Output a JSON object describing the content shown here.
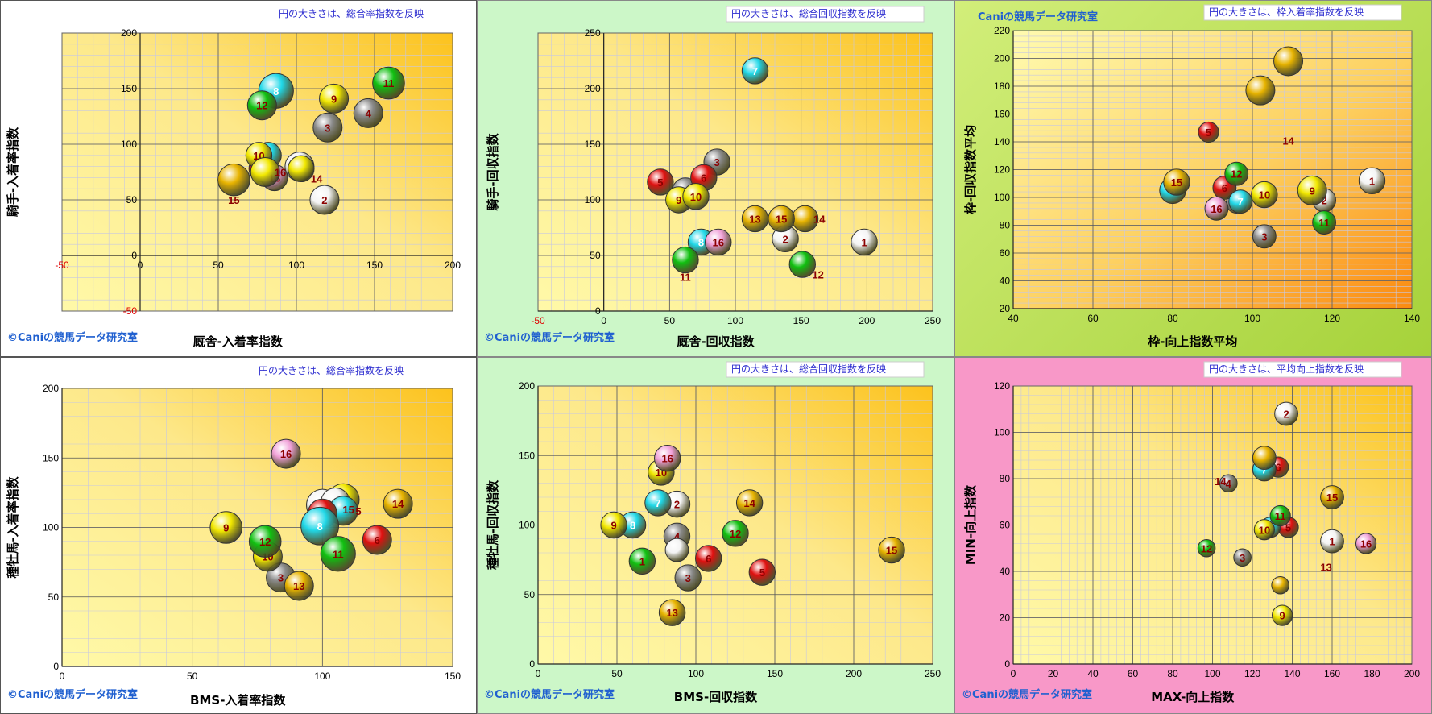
{
  "copyright": "©Caniの競馬データ研究室",
  "colors": {
    "yellow": "#f2e800",
    "gold": "#e8b400",
    "white": "#f4f4f4",
    "gray": "#8a8a8a",
    "red": "#e01010",
    "cyan": "#20d8e8",
    "green": "#10c010",
    "pink": "#f0a0d8",
    "label_dark": "#8b0000",
    "note_blue": "#3030d0",
    "brand_blue": "#2060d0"
  },
  "chart_data": [
    {
      "type": "scatter",
      "note": "円の大きさは、総合率指数を反映",
      "brand": "",
      "xlabel": "厩舎-入着率指数",
      "ylabel": "騎手-入着率指数",
      "xlim": [
        -50,
        200
      ],
      "ylim": [
        -50,
        200
      ],
      "xticks": [
        -50,
        0,
        50,
        100,
        150,
        200
      ],
      "yticks": [
        -50,
        0,
        50,
        100,
        150,
        200
      ],
      "points": [
        {
          "label": "1",
          "x": 102,
          "y": 80,
          "r": 1.0,
          "color": "white"
        },
        {
          "label": "2",
          "x": 118,
          "y": 50,
          "r": 1.0,
          "color": "white"
        },
        {
          "label": "3",
          "x": 120,
          "y": 115,
          "r": 1.0,
          "color": "gray"
        },
        {
          "label": "4",
          "x": 146,
          "y": 128,
          "r": 1.0,
          "color": "gray"
        },
        {
          "label": "5",
          "x": 78,
          "y": 78,
          "r": 0.9,
          "color": "red"
        },
        {
          "label": "6",
          "x": 84,
          "y": 72,
          "r": 0.8,
          "color": "cyan"
        },
        {
          "label": "7",
          "x": 82,
          "y": 90,
          "r": 0.9,
          "color": "cyan"
        },
        {
          "label": "8",
          "x": 87,
          "y": 148,
          "r": 1.2,
          "color": "cyan"
        },
        {
          "label": "9",
          "x": 124,
          "y": 141,
          "r": 1.0,
          "color": "yellow"
        },
        {
          "label": "10",
          "x": 76,
          "y": 90,
          "r": 0.9,
          "color": "yellow"
        },
        {
          "label": "11",
          "x": 159,
          "y": 155,
          "r": 1.1,
          "color": "green"
        },
        {
          "label": "12",
          "x": 78,
          "y": 135,
          "r": 1.0,
          "color": "green"
        },
        {
          "label": "13",
          "x": 86,
          "y": 70,
          "r": 0.9,
          "color": "pink"
        },
        {
          "label": "14",
          "x": 103,
          "y": 78,
          "r": 0.9,
          "color": "yellow",
          "offset": "below-right"
        },
        {
          "label": "15",
          "x": 60,
          "y": 68,
          "r": 1.1,
          "color": "gold",
          "offset": "below"
        },
        {
          "label": "16",
          "x": 80,
          "y": 75,
          "r": 1.0,
          "color": "yellow",
          "offset": "right"
        }
      ]
    },
    {
      "type": "scatter",
      "note": "円の大きさは、総合回収指数を反映",
      "brand": "",
      "xlabel": "厩舎-回収指数",
      "ylabel": "騎手-回収指数",
      "xlim": [
        -50,
        250
      ],
      "ylim": [
        0,
        250
      ],
      "xticks": [
        -50,
        0,
        50,
        100,
        150,
        200,
        250
      ],
      "yticks": [
        0,
        50,
        100,
        150,
        200,
        250
      ],
      "points": [
        {
          "label": "1",
          "x": 198,
          "y": 62,
          "r": 0.9,
          "color": "white"
        },
        {
          "label": "2",
          "x": 138,
          "y": 65,
          "r": 0.9,
          "color": "white"
        },
        {
          "label": "3",
          "x": 86,
          "y": 134,
          "r": 0.9,
          "color": "gray"
        },
        {
          "label": "4",
          "x": 62,
          "y": 108,
          "r": 0.9,
          "color": "gray"
        },
        {
          "label": "5",
          "x": 43,
          "y": 116,
          "r": 0.9,
          "color": "red"
        },
        {
          "label": "6",
          "x": 76,
          "y": 120,
          "r": 0.9,
          "color": "red"
        },
        {
          "label": "7",
          "x": 115,
          "y": 216,
          "r": 0.9,
          "color": "cyan"
        },
        {
          "label": "8",
          "x": 74,
          "y": 62,
          "r": 0.9,
          "color": "cyan"
        },
        {
          "label": "9",
          "x": 57,
          "y": 100,
          "r": 0.9,
          "color": "yellow"
        },
        {
          "label": "10",
          "x": 70,
          "y": 103,
          "r": 0.9,
          "color": "yellow"
        },
        {
          "label": "11",
          "x": 62,
          "y": 46,
          "r": 0.9,
          "color": "green",
          "offset": "below"
        },
        {
          "label": "12",
          "x": 151,
          "y": 42,
          "r": 0.9,
          "color": "green",
          "offset": "below-right"
        },
        {
          "label": "13",
          "x": 115,
          "y": 83,
          "r": 0.9,
          "color": "gold"
        },
        {
          "label": "14",
          "x": 153,
          "y": 83,
          "r": 0.9,
          "color": "gold",
          "offset": "right"
        },
        {
          "label": "15",
          "x": 135,
          "y": 83,
          "r": 0.9,
          "color": "gold"
        },
        {
          "label": "16",
          "x": 87,
          "y": 62,
          "r": 0.9,
          "color": "pink"
        }
      ]
    },
    {
      "type": "scatter",
      "note": "円の大きさは、枠入着率指数を反映",
      "brand": "Caniの競馬データ研究室",
      "xlabel": "枠-向上指数平均",
      "ylabel": "枠-回収指数平均",
      "xlim": [
        40,
        140
      ],
      "ylim": [
        20,
        220
      ],
      "xticks": [
        40,
        60,
        80,
        100,
        120,
        140
      ],
      "yticks": [
        20,
        40,
        60,
        80,
        100,
        120,
        140,
        160,
        180,
        200,
        220
      ],
      "points": [
        {
          "label": "1",
          "x": 130,
          "y": 112,
          "r": 0.9,
          "color": "white"
        },
        {
          "label": "2",
          "x": 118,
          "y": 98,
          "r": 0.8,
          "color": "white"
        },
        {
          "label": "3",
          "x": 103,
          "y": 72,
          "r": 0.8,
          "color": "gray"
        },
        {
          "label": "4",
          "x": 96,
          "y": 96,
          "r": 0.7,
          "color": "gray"
        },
        {
          "label": "5",
          "x": 89,
          "y": 147,
          "r": 0.7,
          "color": "red"
        },
        {
          "label": "6",
          "x": 93,
          "y": 107,
          "r": 0.8,
          "color": "red"
        },
        {
          "label": "7",
          "x": 97,
          "y": 97,
          "r": 0.8,
          "color": "cyan"
        },
        {
          "label": "8",
          "x": 80,
          "y": 105,
          "r": 0.9,
          "color": "cyan"
        },
        {
          "label": "9",
          "x": 115,
          "y": 105,
          "r": 1.0,
          "color": "yellow"
        },
        {
          "label": "10",
          "x": 103,
          "y": 102,
          "r": 0.9,
          "color": "yellow"
        },
        {
          "label": "11",
          "x": 118,
          "y": 82,
          "r": 0.8,
          "color": "green"
        },
        {
          "label": "12",
          "x": 96,
          "y": 117,
          "r": 0.8,
          "color": "green"
        },
        {
          "label": "13",
          "x": 102,
          "y": 177,
          "r": 1.0,
          "color": "gold",
          "hidden": true
        },
        {
          "label": "14",
          "x": 109,
          "y": 141,
          "r": 0,
          "color": "gold",
          "textonly": true
        },
        {
          "label": "15",
          "x": 81,
          "y": 111,
          "r": 0.9,
          "color": "gold"
        },
        {
          "label": "16",
          "x": 91,
          "y": 92,
          "r": 0.8,
          "color": "pink"
        },
        {
          "label": "",
          "x": 109,
          "y": 198,
          "r": 1.0,
          "color": "gold"
        }
      ]
    },
    {
      "type": "scatter",
      "note": "円の大きさは、総合率指数を反映",
      "brand": "",
      "xlabel": "BMS-入着率指数",
      "ylabel": "種牡馬-入着率指数",
      "xlim": [
        0,
        150
      ],
      "ylim": [
        0,
        200
      ],
      "xticks": [
        0,
        50,
        100,
        150
      ],
      "yticks": [
        0,
        50,
        100,
        150,
        200
      ],
      "points": [
        {
          "label": "1",
          "x": 108,
          "y": 120,
          "r": 1.1,
          "color": "yellow"
        },
        {
          "label": "2",
          "x": 100,
          "y": 116,
          "r": 1.1,
          "color": "white"
        },
        {
          "label": "3",
          "x": 84,
          "y": 64,
          "r": 1.0,
          "color": "gray"
        },
        {
          "label": "4",
          "x": 105,
          "y": 118,
          "r": 1.0,
          "color": "white"
        },
        {
          "label": "5",
          "x": 108,
          "y": 112,
          "r": 1.0,
          "color": "cyan",
          "offset": "right"
        },
        {
          "label": "6",
          "x": 121,
          "y": 91,
          "r": 1.0,
          "color": "red"
        },
        {
          "label": "7",
          "x": 100,
          "y": 110,
          "r": 1.0,
          "color": "red"
        },
        {
          "label": "8",
          "x": 99,
          "y": 101,
          "r": 1.3,
          "color": "cyan"
        },
        {
          "label": "9",
          "x": 63,
          "y": 100,
          "r": 1.1,
          "color": "yellow"
        },
        {
          "label": "10",
          "x": 79,
          "y": 79,
          "r": 1.0,
          "color": "yellow"
        },
        {
          "label": "11",
          "x": 106,
          "y": 81,
          "r": 1.2,
          "color": "green"
        },
        {
          "label": "12",
          "x": 78,
          "y": 90,
          "r": 1.1,
          "color": "green"
        },
        {
          "label": "13",
          "x": 91,
          "y": 58,
          "r": 1.0,
          "color": "gold"
        },
        {
          "label": "14",
          "x": 129,
          "y": 117,
          "r": 1.0,
          "color": "gold"
        },
        {
          "label": "15",
          "x": 110,
          "y": 113,
          "r": 0,
          "color": "gold",
          "textonly": true
        },
        {
          "label": "16",
          "x": 86,
          "y": 153,
          "r": 1.0,
          "color": "pink"
        }
      ]
    },
    {
      "type": "scatter",
      "note": "円の大きさは、総合回収指数を反映",
      "brand": "",
      "xlabel": "BMS-回収指数",
      "ylabel": "種牡馬-回収指数",
      "xlim": [
        0,
        250
      ],
      "ylim": [
        0,
        200
      ],
      "xticks": [
        0,
        50,
        100,
        150,
        200,
        250
      ],
      "yticks": [
        0,
        50,
        100,
        150,
        200
      ],
      "points": [
        {
          "label": "1",
          "x": 66,
          "y": 74,
          "r": 0.9,
          "color": "green"
        },
        {
          "label": "2",
          "x": 88,
          "y": 115,
          "r": 0.9,
          "color": "white"
        },
        {
          "label": "3",
          "x": 95,
          "y": 62,
          "r": 0.9,
          "color": "gray"
        },
        {
          "label": "4",
          "x": 88,
          "y": 92,
          "r": 0.9,
          "color": "gray"
        },
        {
          "label": "5",
          "x": 142,
          "y": 66,
          "r": 0.9,
          "color": "red"
        },
        {
          "label": "6",
          "x": 108,
          "y": 76,
          "r": 0.9,
          "color": "red"
        },
        {
          "label": "7",
          "x": 76,
          "y": 116,
          "r": 0.9,
          "color": "cyan"
        },
        {
          "label": "8",
          "x": 60,
          "y": 100,
          "r": 0.9,
          "color": "cyan"
        },
        {
          "label": "9",
          "x": 48,
          "y": 100,
          "r": 0.9,
          "color": "yellow"
        },
        {
          "label": "10",
          "x": 78,
          "y": 138,
          "r": 0.9,
          "color": "yellow"
        },
        {
          "label": "11",
          "x": 88,
          "y": 82,
          "r": 0.8,
          "color": "white",
          "hidden": true
        },
        {
          "label": "12",
          "x": 125,
          "y": 94,
          "r": 0.9,
          "color": "green"
        },
        {
          "label": "13",
          "x": 85,
          "y": 37,
          "r": 0.9,
          "color": "gold"
        },
        {
          "label": "14",
          "x": 134,
          "y": 116,
          "r": 0.9,
          "color": "gold"
        },
        {
          "label": "15",
          "x": 224,
          "y": 82,
          "r": 0.9,
          "color": "gold"
        },
        {
          "label": "16",
          "x": 82,
          "y": 148,
          "r": 0.9,
          "color": "pink"
        }
      ]
    },
    {
      "type": "scatter",
      "note": "円の大きさは、平均向上指数を反映",
      "brand": "",
      "xlabel": "MAX-向上指数",
      "ylabel": "MIN-向上指数",
      "xlim": [
        0,
        200
      ],
      "ylim": [
        0,
        120
      ],
      "xticks": [
        0,
        20,
        40,
        60,
        80,
        100,
        120,
        140,
        160,
        180,
        200
      ],
      "yticks": [
        0,
        20,
        40,
        60,
        80,
        100,
        120
      ],
      "points": [
        {
          "label": "1",
          "x": 160,
          "y": 53,
          "r": 0.8,
          "color": "white"
        },
        {
          "label": "2",
          "x": 137,
          "y": 108,
          "r": 0.8,
          "color": "white"
        },
        {
          "label": "3",
          "x": 115,
          "y": 46,
          "r": 0.6,
          "color": "gray"
        },
        {
          "label": "4",
          "x": 108,
          "y": 78,
          "r": 0.6,
          "color": "gray"
        },
        {
          "label": "5",
          "x": 138,
          "y": 59,
          "r": 0.7,
          "color": "red"
        },
        {
          "label": "6",
          "x": 133,
          "y": 85,
          "r": 0.7,
          "color": "red"
        },
        {
          "label": "7",
          "x": 126,
          "y": 84,
          "r": 0.8,
          "color": "cyan"
        },
        {
          "label": "8",
          "x": 129,
          "y": 59,
          "r": 0.7,
          "color": "cyan"
        },
        {
          "label": "9",
          "x": 135,
          "y": 21,
          "r": 0.7,
          "color": "yellow"
        },
        {
          "label": "10",
          "x": 126,
          "y": 58,
          "r": 0.7,
          "color": "yellow"
        },
        {
          "label": "11",
          "x": 134,
          "y": 64,
          "r": 0.7,
          "color": "green"
        },
        {
          "label": "12",
          "x": 97,
          "y": 50,
          "r": 0.6,
          "color": "green"
        },
        {
          "label": "13",
          "x": 157,
          "y": 42,
          "r": 0,
          "color": "gold",
          "textonly": true
        },
        {
          "label": "14",
          "x": 104,
          "y": 79,
          "r": 0,
          "color": "gold",
          "textonly": true
        },
        {
          "label": "15",
          "x": 160,
          "y": 72,
          "r": 0.8,
          "color": "gold"
        },
        {
          "label": "16",
          "x": 177,
          "y": 52,
          "r": 0.7,
          "color": "pink"
        },
        {
          "label": "",
          "x": 134,
          "y": 34,
          "r": 0.6,
          "color": "gold"
        },
        {
          "label": "",
          "x": 126,
          "y": 89,
          "r": 0.8,
          "color": "gold"
        }
      ]
    }
  ]
}
